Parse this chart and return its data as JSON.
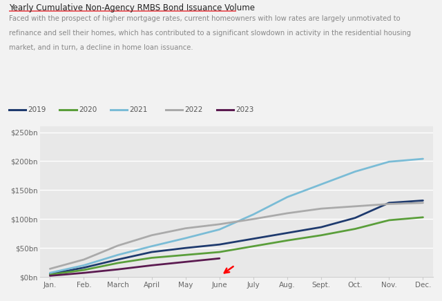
{
  "title": "Yearly Cumulative Non-Agency RMBS Bond Issuance Volume",
  "subtitle_lines": [
    "Faced with the prospect of higher mortgage rates, current homeowners with low rates are largely unmotivated to",
    "refinance and sell their homes, which has contributed to a significant slowdown in activity in the residential housing",
    "market, and in turn, a decline in home loan issuance."
  ],
  "background_color": "#f2f2f2",
  "plot_bg_color": "#e8e8e8",
  "text_color": "#666666",
  "title_color": "#222222",
  "months": [
    "Jan.",
    "Feb.",
    "March",
    "April",
    "May",
    "June",
    "July",
    "Aug.",
    "Sept.",
    "Oct.",
    "Nov.",
    "Dec."
  ],
  "series": {
    "2019": {
      "color": "#1e3a6e",
      "linewidth": 2.0,
      "data": [
        5,
        16,
        30,
        43,
        50,
        56,
        66,
        76,
        86,
        102,
        128,
        132
      ]
    },
    "2020": {
      "color": "#5a9e3a",
      "linewidth": 2.0,
      "data": [
        4,
        12,
        24,
        33,
        38,
        43,
        53,
        63,
        72,
        83,
        98,
        103
      ]
    },
    "2021": {
      "color": "#7abcd6",
      "linewidth": 2.0,
      "data": [
        7,
        20,
        38,
        53,
        67,
        82,
        108,
        138,
        160,
        182,
        199,
        204
      ]
    },
    "2022": {
      "color": "#aaaaaa",
      "linewidth": 2.0,
      "data": [
        14,
        30,
        54,
        72,
        84,
        91,
        100,
        110,
        118,
        122,
        126,
        128
      ]
    },
    "2023": {
      "color": "#5b1a50",
      "linewidth": 2.0,
      "data": [
        2,
        7,
        13,
        20,
        26,
        32,
        null,
        null,
        null,
        null,
        null,
        null
      ]
    }
  },
  "ylim": [
    0,
    260
  ],
  "yticks": [
    0,
    50,
    100,
    150,
    200,
    250
  ],
  "ytick_labels": [
    "$0bn",
    "$50bn",
    "$100bn",
    "$150bn",
    "$200bn",
    "$250bn"
  ],
  "legend_order": [
    "2019",
    "2020",
    "2021",
    "2022",
    "2023"
  ],
  "title_underline_color": "#e8474c",
  "grid_color": "#ffffff",
  "spine_color": "#cccccc"
}
